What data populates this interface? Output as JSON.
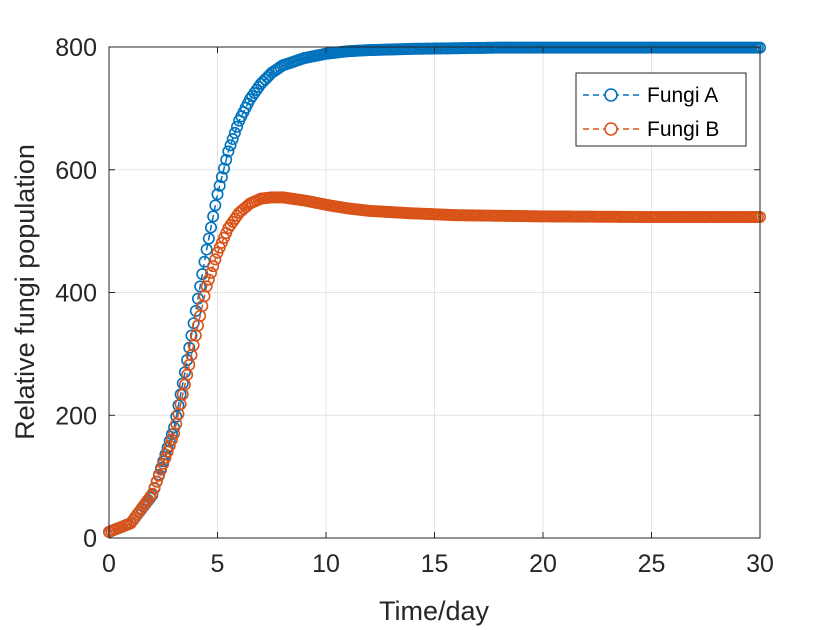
{
  "chart_data": {
    "type": "line",
    "xlabel": "Time/day",
    "ylabel": "Relative fungi population",
    "xlim": [
      0,
      30
    ],
    "ylim": [
      0,
      800
    ],
    "xticks": [
      0,
      5,
      10,
      15,
      20,
      25,
      30
    ],
    "yticks": [
      0,
      200,
      400,
      600,
      800
    ],
    "x_tick_labels": [
      "0",
      "5",
      "10",
      "15",
      "20",
      "25",
      "30"
    ],
    "y_tick_labels": [
      "0",
      "200",
      "400",
      "600",
      "800"
    ],
    "grid": true,
    "legend_position": "top-right",
    "marker": "open-circle",
    "line_style": "dashed",
    "series": [
      {
        "name": "Fungi A",
        "color": "#0072BD",
        "x": [
          0,
          1,
          2,
          3,
          3.5,
          4,
          4.5,
          5,
          5.5,
          6,
          6.5,
          7,
          7.5,
          8,
          9,
          10,
          11,
          12,
          14,
          16,
          18,
          20,
          25,
          30
        ],
        "y": [
          10,
          24,
          70,
          180,
          270,
          370,
          470,
          560,
          630,
          680,
          715,
          740,
          758,
          770,
          782,
          789,
          793,
          795,
          797,
          798,
          799,
          799,
          799,
          799
        ]
      },
      {
        "name": "Fungi B",
        "color": "#D95319",
        "x": [
          0,
          1,
          2,
          3,
          3.5,
          4,
          4.5,
          5,
          5.5,
          6,
          6.5,
          7,
          7.5,
          8,
          9,
          10,
          11,
          12,
          14,
          16,
          18,
          20,
          25,
          30
        ],
        "y": [
          10,
          24,
          72,
          170,
          250,
          330,
          410,
          465,
          505,
          530,
          545,
          553,
          555,
          555,
          550,
          543,
          537,
          533,
          529,
          526,
          525,
          524,
          523,
          523
        ]
      }
    ]
  }
}
